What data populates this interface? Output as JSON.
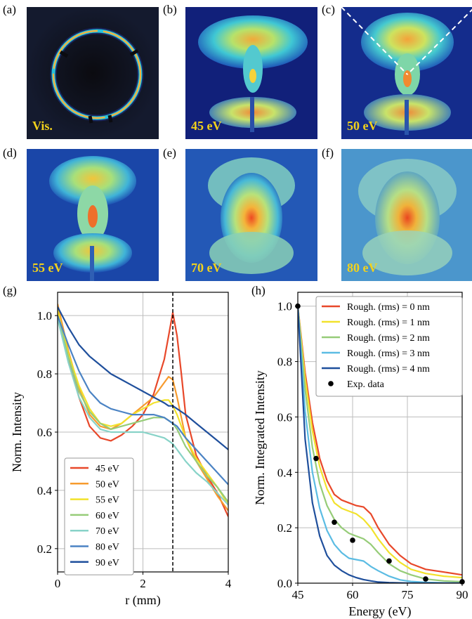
{
  "panels": {
    "a": {
      "label": "(a)",
      "caption": "Vis."
    },
    "b": {
      "label": "(b)",
      "caption": "45 eV"
    },
    "c": {
      "label": "(c)",
      "caption": "50 eV"
    },
    "d": {
      "label": "(d)",
      "caption": "55 eV"
    },
    "e": {
      "label": "(e)",
      "caption": "70 eV"
    },
    "f": {
      "label": "(f)",
      "caption": "80 eV"
    }
  },
  "chart_data": [
    {
      "panel_label": "(g)",
      "type": "line",
      "xlabel": "r (mm)",
      "ylabel": "Norm. Intensity",
      "xlim": [
        0,
        4
      ],
      "ylim": [
        0.12,
        1.08
      ],
      "xticks": [
        0,
        2,
        4
      ],
      "yticks": [
        0.2,
        0.4,
        0.6,
        0.8,
        1.0
      ],
      "grid": true,
      "legend_position": "lower-left",
      "vline": {
        "x": 2.7,
        "style": "dashed"
      },
      "x": [
        0,
        0.25,
        0.5,
        0.75,
        1.0,
        1.25,
        1.5,
        1.75,
        2.0,
        2.25,
        2.5,
        2.6,
        2.7,
        2.8,
        2.9,
        3.0,
        3.25,
        3.5,
        3.75,
        4.0
      ],
      "series": [
        {
          "name": "45 eV",
          "color": "#e8482a",
          "values": [
            1.02,
            0.86,
            0.72,
            0.62,
            0.58,
            0.57,
            0.59,
            0.62,
            0.66,
            0.73,
            0.85,
            0.93,
            1.01,
            0.93,
            0.8,
            0.66,
            0.52,
            0.45,
            0.39,
            0.31
          ]
        },
        {
          "name": "50 eV",
          "color": "#f79b2e",
          "values": [
            1.04,
            0.88,
            0.75,
            0.66,
            0.62,
            0.61,
            0.63,
            0.66,
            0.69,
            0.72,
            0.77,
            0.79,
            0.78,
            0.72,
            0.65,
            0.58,
            0.5,
            0.44,
            0.38,
            0.33
          ]
        },
        {
          "name": "55 eV",
          "color": "#f2e22c",
          "values": [
            1.02,
            0.87,
            0.76,
            0.68,
            0.63,
            0.62,
            0.63,
            0.66,
            0.68,
            0.7,
            0.71,
            0.71,
            0.69,
            0.66,
            0.62,
            0.58,
            0.51,
            0.46,
            0.41,
            0.35
          ]
        },
        {
          "name": "60 eV",
          "color": "#96cc78",
          "values": [
            1.0,
            0.86,
            0.74,
            0.67,
            0.63,
            0.61,
            0.62,
            0.63,
            0.64,
            0.65,
            0.65,
            0.64,
            0.63,
            0.61,
            0.58,
            0.55,
            0.5,
            0.45,
            0.41,
            0.36
          ]
        },
        {
          "name": "70 eV",
          "color": "#88d3c8",
          "values": [
            0.99,
            0.84,
            0.72,
            0.65,
            0.61,
            0.6,
            0.6,
            0.6,
            0.6,
            0.59,
            0.58,
            0.57,
            0.56,
            0.54,
            0.52,
            0.5,
            0.46,
            0.43,
            0.39,
            0.35
          ]
        },
        {
          "name": "80 eV",
          "color": "#4b83c4",
          "values": [
            1.0,
            0.9,
            0.81,
            0.74,
            0.7,
            0.68,
            0.67,
            0.66,
            0.66,
            0.66,
            0.65,
            0.64,
            0.63,
            0.62,
            0.6,
            0.58,
            0.54,
            0.5,
            0.46,
            0.42
          ]
        },
        {
          "name": "90 eV",
          "color": "#1f4f9c",
          "values": [
            1.03,
            0.96,
            0.9,
            0.86,
            0.83,
            0.8,
            0.78,
            0.76,
            0.74,
            0.72,
            0.7,
            0.69,
            0.69,
            0.68,
            0.67,
            0.66,
            0.63,
            0.6,
            0.57,
            0.54
          ]
        }
      ]
    },
    {
      "panel_label": "(h)",
      "type": "line",
      "xlabel": "Energy (eV)",
      "ylabel": "Norm. Integrated Intensity",
      "xlim": [
        45,
        90
      ],
      "ylim": [
        0,
        1.05
      ],
      "xticks": [
        45,
        60,
        75,
        90
      ],
      "yticks": [
        0.0,
        0.2,
        0.4,
        0.6,
        0.8,
        1.0
      ],
      "grid": true,
      "legend_position": "top-right",
      "x": [
        45,
        47,
        49,
        51,
        53,
        55,
        57,
        59,
        61,
        63,
        65,
        67,
        70,
        73,
        76,
        80,
        85,
        90
      ],
      "series": [
        {
          "name": "Rough. (rms) = 0 nm",
          "color": "#e8482a",
          "values": [
            1.0,
            0.76,
            0.58,
            0.45,
            0.37,
            0.32,
            0.3,
            0.29,
            0.28,
            0.275,
            0.25,
            0.2,
            0.14,
            0.1,
            0.07,
            0.05,
            0.04,
            0.03
          ]
        },
        {
          "name": "Rough. (rms) = 1 nm",
          "color": "#f2e22c",
          "values": [
            1.0,
            0.74,
            0.55,
            0.42,
            0.34,
            0.29,
            0.27,
            0.26,
            0.25,
            0.23,
            0.2,
            0.16,
            0.11,
            0.075,
            0.05,
            0.035,
            0.025,
            0.02
          ]
        },
        {
          "name": "Rough. (rms) = 2 nm",
          "color": "#96cc78",
          "values": [
            1.0,
            0.7,
            0.49,
            0.36,
            0.28,
            0.23,
            0.2,
            0.18,
            0.17,
            0.16,
            0.14,
            0.11,
            0.07,
            0.045,
            0.03,
            0.015,
            0.008,
            0.005
          ]
        },
        {
          "name": "Rough. (rms) = 3 nm",
          "color": "#5bbce3",
          "values": [
            1.0,
            0.62,
            0.4,
            0.27,
            0.19,
            0.14,
            0.11,
            0.09,
            0.085,
            0.08,
            0.06,
            0.045,
            0.025,
            0.012,
            0.006,
            0.003,
            0.001,
            0.0
          ]
        },
        {
          "name": "Rough. (rms) = 4 nm",
          "color": "#1f4f9c",
          "values": [
            1.0,
            0.52,
            0.29,
            0.17,
            0.1,
            0.065,
            0.045,
            0.03,
            0.02,
            0.013,
            0.008,
            0.004,
            0.002,
            0.001,
            0.0,
            0.0,
            0.0,
            0.0
          ]
        }
      ],
      "scatter": {
        "name": "Exp. data",
        "color": "#000000",
        "x": [
          45,
          50,
          55,
          60,
          70,
          80,
          90
        ],
        "y": [
          1.0,
          0.45,
          0.22,
          0.155,
          0.08,
          0.015,
          0.005
        ]
      }
    }
  ]
}
